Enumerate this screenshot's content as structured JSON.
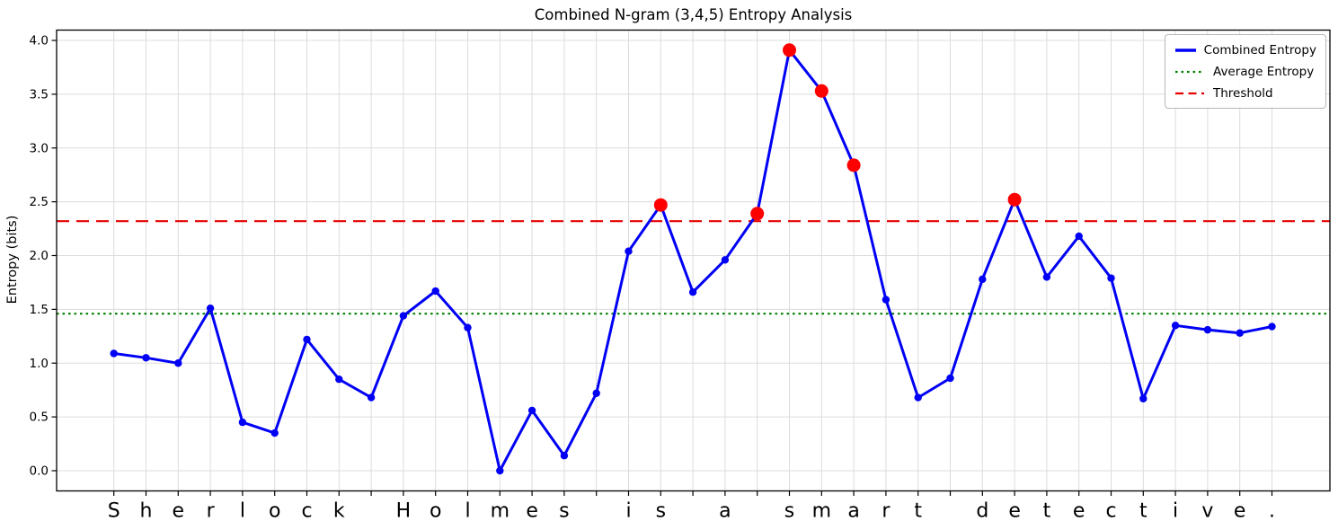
{
  "figure": {
    "title": "Combined N-gram (3,4,5) Entropy Analysis"
  },
  "chart_data": {
    "type": "line",
    "title": "Combined N-gram (3,4,5) Entropy Analysis",
    "xlabel": "",
    "ylabel": "Entropy (bits)",
    "x_text": "Sherlock Holmes is a smart detective.",
    "x_tick_labels": [
      "S",
      "h",
      "e",
      "r",
      "l",
      "o",
      "c",
      "k",
      " ",
      "H",
      "o",
      "l",
      "m",
      "e",
      "s",
      " ",
      "i",
      "s",
      " ",
      "a",
      " ",
      "s",
      "m",
      "a",
      "r",
      "t",
      " ",
      "d",
      "e",
      "t",
      "e",
      "c",
      "t",
      "i",
      "v",
      "e",
      "."
    ],
    "series": [
      {
        "name": "Combined Entropy",
        "color": "#0000f5",
        "values": [
          1.09,
          1.05,
          1.0,
          1.51,
          0.45,
          0.35,
          1.22,
          0.85,
          0.68,
          1.44,
          1.67,
          1.33,
          0.0,
          0.56,
          0.14,
          0.72,
          2.04,
          2.47,
          1.66,
          1.96,
          2.39,
          3.91,
          3.53,
          2.84,
          1.59,
          0.68,
          0.86,
          1.78,
          2.52,
          1.8,
          2.18,
          1.79,
          0.67,
          1.35,
          1.31,
          1.28,
          1.34
        ]
      }
    ],
    "average_line": {
      "label": "Average Entropy",
      "value": 1.46,
      "color": "#008000",
      "style": "dotted"
    },
    "threshold_line": {
      "label": "Threshold",
      "value": 2.32,
      "color": "#e60000",
      "style": "dashed"
    },
    "highlight_points": {
      "indices": [
        17,
        20,
        21,
        22,
        23,
        28
      ],
      "color": "#ff0000"
    },
    "ylim": [
      -0.2,
      4.1
    ],
    "y_ticks": [
      "0.0",
      "0.5",
      "1.0",
      "1.5",
      "2.0",
      "2.5",
      "3.0",
      "3.5",
      "4.0"
    ],
    "grid": true,
    "legend_position": "upper right"
  },
  "legend": {
    "items": [
      {
        "label": "Combined Entropy",
        "color": "#0000f5",
        "style": "solid"
      },
      {
        "label": "Average Entropy",
        "color": "#008000",
        "style": "dotted"
      },
      {
        "label": "Threshold",
        "color": "#e60000",
        "style": "dashed"
      }
    ]
  }
}
